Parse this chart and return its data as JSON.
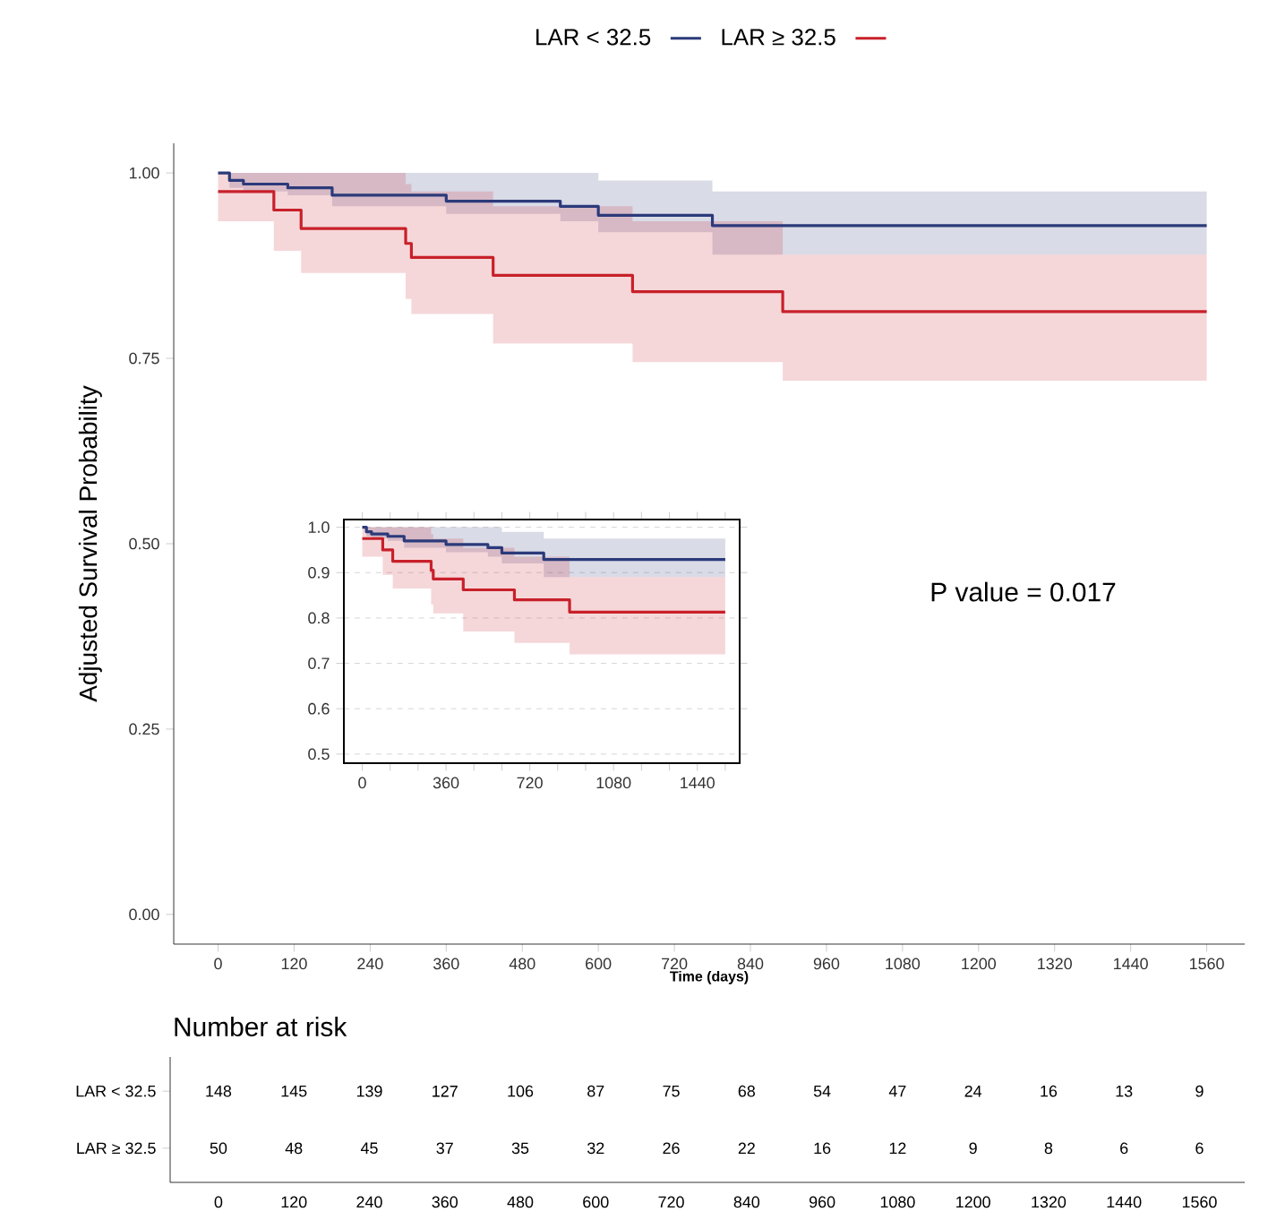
{
  "chart_data": [
    {
      "type": "step",
      "xlabel": "Time (days)",
      "ylabel": "Adjusted Survival Probability",
      "legend": "top",
      "line_style": "solid",
      "xlim": [
        -70,
        1620
      ],
      "ylim": [
        -0.04,
        1.04
      ],
      "xticks": [
        0,
        120,
        240,
        360,
        480,
        600,
        720,
        840,
        960,
        1080,
        1200,
        1320,
        1440,
        1560
      ],
      "yticks": [
        {
          "value": 0,
          "label": "0.00"
        },
        {
          "value": 0.25,
          "label": "0.25"
        },
        {
          "value": 0.5,
          "label": "0.50"
        },
        {
          "value": 0.75,
          "label": "0.75"
        },
        {
          "value": 1,
          "label": "1.00"
        }
      ],
      "annotations": [
        "P value = 0.017"
      ],
      "series": [
        {
          "name": "LAR < 32.5",
          "color": "#2b3a7a",
          "x": [
            0,
            18,
            40,
            110,
            180,
            360,
            540,
            600,
            780,
            1560
          ],
          "values": [
            1.0,
            0.99,
            0.985,
            0.98,
            0.97,
            0.962,
            0.955,
            0.943,
            0.929,
            0.929
          ],
          "lower": [
            1.0,
            0.98,
            0.975,
            0.97,
            0.955,
            0.945,
            0.935,
            0.92,
            0.89,
            0.89
          ],
          "upper": [
            1.0,
            1.0,
            1.0,
            1.0,
            1.0,
            1.0,
            1.0,
            0.99,
            0.975,
            0.975
          ]
        },
        {
          "name": "LAR ≥ 32.5",
          "color": "#c8202a",
          "x": [
            0,
            88,
            131,
            296,
            305,
            434,
            654,
            891,
            1560
          ],
          "values": [
            0.975,
            0.95,
            0.925,
            0.905,
            0.886,
            0.862,
            0.84,
            0.813,
            0.813
          ],
          "lower": [
            0.935,
            0.895,
            0.865,
            0.83,
            0.81,
            0.77,
            0.745,
            0.72,
            0.72
          ],
          "upper": [
            1.0,
            1.0,
            1.0,
            0.985,
            0.975,
            0.955,
            0.935,
            0.89,
            0.89
          ]
        }
      ]
    },
    {
      "type": "step",
      "grid": "y",
      "line_style": "solid",
      "xlim": [
        -79,
        1622
      ],
      "ylim": [
        0.48,
        1.017
      ],
      "xticks": [
        0,
        {
          "value": 120,
          "label": null
        },
        {
          "value": 240,
          "label": null
        },
        360,
        {
          "value": 480,
          "label": null
        },
        {
          "value": 600,
          "label": null
        },
        720,
        {
          "value": 840,
          "label": null
        },
        {
          "value": 960,
          "label": null
        },
        1080,
        {
          "value": 1200,
          "label": null
        },
        {
          "value": 1320,
          "label": null
        },
        1440,
        {
          "value": 1560,
          "label": null
        }
      ],
      "yticks": [
        0.5,
        0.6,
        0.7,
        0.8,
        0.9,
        {
          "value": 1,
          "label": "1.0"
        }
      ],
      "series": [
        {
          "color": "#2b3a7a",
          "x": [
            0,
            18,
            40,
            110,
            180,
            360,
            540,
            600,
            780,
            1560
          ],
          "values": [
            1.0,
            0.99,
            0.985,
            0.98,
            0.97,
            0.962,
            0.955,
            0.943,
            0.929,
            0.929
          ],
          "lower": [
            1.0,
            0.98,
            0.975,
            0.97,
            0.955,
            0.945,
            0.935,
            0.92,
            0.89,
            0.89
          ],
          "upper": [
            1.0,
            1.0,
            1.0,
            1.0,
            1.0,
            1.0,
            1.0,
            0.99,
            0.975,
            0.975
          ]
        },
        {
          "color": "#c8202a",
          "x": [
            0,
            88,
            131,
            296,
            305,
            434,
            654,
            891,
            1560
          ],
          "values": [
            0.975,
            0.95,
            0.925,
            0.905,
            0.886,
            0.862,
            0.84,
            0.813,
            0.813
          ],
          "lower": [
            0.935,
            0.895,
            0.865,
            0.83,
            0.81,
            0.77,
            0.745,
            0.72,
            0.72
          ],
          "upper": [
            1.0,
            1.0,
            1.0,
            0.985,
            0.975,
            0.955,
            0.935,
            0.89,
            0.89
          ]
        }
      ]
    },
    {
      "type": "heatmap",
      "title": "Number at risk",
      "data_labels": true,
      "categories": [
        "0",
        "120",
        "240",
        "360",
        "480",
        "600",
        "720",
        "840",
        "960",
        "1080",
        "1200",
        "1320",
        "1440",
        "1560"
      ],
      "y_categories": [
        "LAR < 32.5",
        "LAR ≥ 32.5"
      ],
      "cells": [
        [
          148,
          145,
          139,
          127,
          106,
          87,
          75,
          68,
          54,
          47,
          24,
          16,
          13,
          9
        ],
        [
          50,
          48,
          45,
          37,
          35,
          32,
          26,
          22,
          16,
          12,
          9,
          8,
          6,
          6
        ]
      ]
    }
  ]
}
